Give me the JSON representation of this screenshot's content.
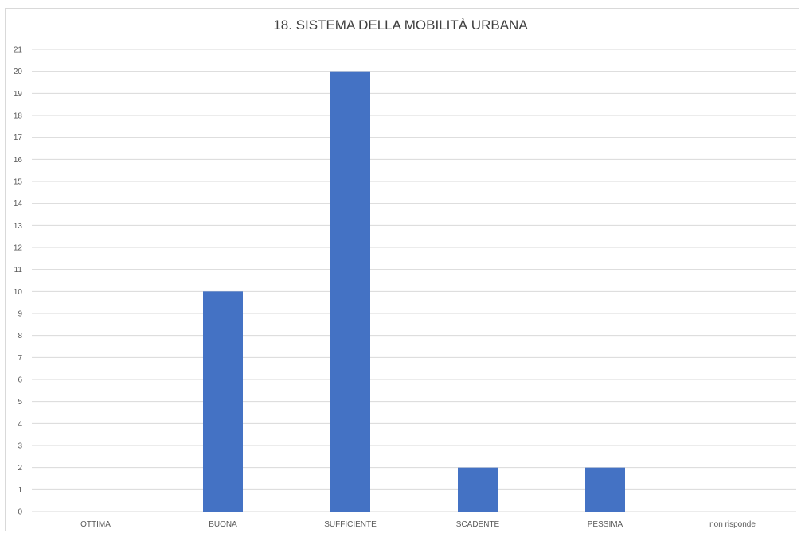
{
  "chart_data": {
    "type": "bar",
    "title": "18. SISTEMA DELLA MOBILITÀ URBANA",
    "categories": [
      "OTTIMA",
      "BUONA",
      "SUFFICIENTE",
      "SCADENTE",
      "PESSIMA",
      "non risponde"
    ],
    "values": [
      0,
      10,
      20,
      2,
      2,
      0
    ],
    "ylim": [
      0,
      21
    ],
    "yticks": [
      0,
      1,
      2,
      3,
      4,
      5,
      6,
      7,
      8,
      9,
      10,
      11,
      12,
      13,
      14,
      15,
      16,
      17,
      18,
      19,
      20,
      21
    ],
    "xlabel": "",
    "ylabel": "",
    "grid": true,
    "legend": "none",
    "bar_color": "#4472c4",
    "grid_color": "#d9d9d9",
    "text_color": "#595959"
  }
}
